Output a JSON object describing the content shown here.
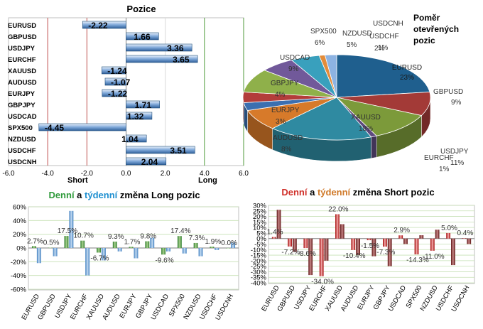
{
  "positions": {
    "title": "Pozice",
    "short_label": "Short",
    "long_label": "Long",
    "xlim": [
      -6,
      6
    ],
    "ticks": [
      "-6.0",
      "-4.0",
      "-2.0",
      "0.0",
      "2.0",
      "4.0",
      "6.0"
    ],
    "tick_values": [
      -6,
      -4,
      -2,
      0,
      2,
      4,
      6
    ],
    "categories": [
      "EURUSD",
      "GBPUSD",
      "USDJPY",
      "EURCHF",
      "XAUUSD",
      "AUDUSD",
      "EURJPY",
      "GBPJPY",
      "USDCAD",
      "SPX500",
      "NZDUSD",
      "USDCHF",
      "USDCNH"
    ],
    "values": [
      -2.22,
      1.66,
      3.36,
      3.65,
      -1.24,
      -1.07,
      -1.22,
      1.71,
      1.32,
      -4.45,
      1.04,
      3.51,
      2.04
    ],
    "value_labels": [
      "-2.22",
      "1.66",
      "3.36",
      "3.65",
      "-1.24",
      "-1.07",
      "-1.22",
      "1.71",
      "1.32",
      "-4.45",
      "1.04",
      "3.51",
      "2.04"
    ]
  },
  "pie": {
    "title_lines": [
      "Poměr",
      "otevřených",
      "pozic"
    ],
    "slices": [
      {
        "label": "EURUSD",
        "pct": "23%",
        "value": 23,
        "color": "#1f5f8e"
      },
      {
        "label": "GBPUSD",
        "pct": "9%",
        "value": 9,
        "color": "#a33a37"
      },
      {
        "label": "USDJPY",
        "pct": "11%",
        "value": 11,
        "color": "#7c9a3a"
      },
      {
        "label": "EURCHF",
        "pct": "1%",
        "value": 1,
        "color": "#5e4a7e"
      },
      {
        "label": "XAUUSD",
        "pct": "18%",
        "value": 18,
        "color": "#2f8aa1"
      },
      {
        "label": "AUDUSD",
        "pct": "8%",
        "value": 8,
        "color": "#d77a2a"
      },
      {
        "label": "EURJPY",
        "pct": "3%",
        "value": 3,
        "color": "#3b6fb0"
      },
      {
        "label": "GBPJPY",
        "pct": "4%",
        "value": 4,
        "color": "#b33d3a"
      },
      {
        "label": "USDCAD",
        "pct": "9%",
        "value": 9,
        "color": "#8fb04a"
      },
      {
        "label": "SPX500",
        "pct": "6%",
        "value": 6,
        "color": "#71599a"
      },
      {
        "label": "NZDUSD",
        "pct": "5%",
        "value": 5,
        "color": "#39a0bd"
      },
      {
        "label": "USDCHF",
        "pct": "1%",
        "value": 1,
        "color": "#e38c3a"
      },
      {
        "label": "USDCNH",
        "pct": "2%",
        "value": 2,
        "color": "#8db3e2"
      }
    ]
  },
  "long_chart": {
    "title_parts": [
      "Denní",
      " a ",
      "týdenní",
      " změna Long pozic"
    ],
    "title_colors": [
      "#2e9a3a",
      "#000000",
      "#1e8fd0",
      "#000000"
    ],
    "ylim": [
      -60,
      60
    ],
    "yticks": [
      "60%",
      "40%",
      "20%",
      "0%",
      "-20%",
      "-40%",
      "-60%"
    ],
    "ytick_values": [
      60,
      40,
      20,
      0,
      -20,
      -40,
      -60
    ],
    "categories": [
      "EURUSD",
      "GBPUSD",
      "USDJPY",
      "EURCHF",
      "XAUUSD",
      "AUDUSD",
      "EURJPY",
      "GBPJPY",
      "USDCAD",
      "SPX500",
      "NZDUSD",
      "USDCHF",
      "USDCNH"
    ],
    "series": [
      {
        "name": "Denní",
        "color": "#4a9a3a",
        "values": [
          2.7,
          0.5,
          17.5,
          10.7,
          -6.7,
          9.3,
          1.7,
          9.8,
          -9.6,
          17.4,
          7.3,
          1.9,
          0.0
        ]
      },
      {
        "name": "Týdenní",
        "color": "#5b9bd5",
        "values": [
          -22,
          -12,
          54,
          -40,
          -18,
          -5,
          -15,
          15,
          -5,
          -8,
          -12,
          -3,
          8
        ]
      }
    ],
    "labels": [
      {
        "text": "2.7%",
        "cat": 0,
        "val": 2.7
      },
      {
        "text": "0.5%",
        "cat": 1,
        "val": 0.5
      },
      {
        "text": "17.5%",
        "cat": 2,
        "val": 17.5
      },
      {
        "text": "10.7%",
        "cat": 3,
        "val": 10.7
      },
      {
        "text": "-6.7%",
        "cat": 4,
        "val": -6.7
      },
      {
        "text": "9.3%",
        "cat": 5,
        "val": 9.3
      },
      {
        "text": "1.7%",
        "cat": 6,
        "val": 1.7
      },
      {
        "text": "9.8%",
        "cat": 7,
        "val": 9.8
      },
      {
        "text": "-9.6%",
        "cat": 8,
        "val": -9.6
      },
      {
        "text": "17.4%",
        "cat": 9,
        "val": 17.4
      },
      {
        "text": "7.3%",
        "cat": 10,
        "val": 7.3
      },
      {
        "text": "1.9%",
        "cat": 11,
        "val": 1.9
      },
      {
        "text": "0.0%",
        "cat": 12,
        "val": 0.0
      }
    ]
  },
  "short_chart": {
    "title_parts": [
      "Denní",
      " a ",
      "týdenní",
      " změna Short pozic"
    ],
    "title_colors": [
      "#d0302a",
      "#000000",
      "#d07a2a",
      "#000000"
    ],
    "ylim": [
      -40,
      30
    ],
    "yticks": [
      "30%",
      "25%",
      "20%",
      "15%",
      "10%",
      "5%",
      "0%",
      "-5%",
      "-10%",
      "-15%",
      "-20%",
      "-25%",
      "-30%",
      "-35%",
      "-40%"
    ],
    "ytick_values": [
      30,
      25,
      20,
      15,
      10,
      5,
      0,
      -5,
      -10,
      -15,
      -20,
      -25,
      -30,
      -35,
      -40
    ],
    "categories": [
      "EURUSD",
      "GBPUSD",
      "USDJPY",
      "EURCHF",
      "XAUUSD",
      "AUDUSD",
      "EURJPY",
      "GBPJPY",
      "USDCAD",
      "SPX500",
      "NZDUSD",
      "USDCHF",
      "USDCNH"
    ],
    "series": [
      {
        "name": "Denní",
        "color": "#c00000",
        "values": [
          1.4,
          -7.2,
          -8.6,
          -34.0,
          22.0,
          -10.4,
          -1.5,
          -7.3,
          2.9,
          -14.3,
          -11.0,
          5.0,
          0.4
        ]
      },
      {
        "name": "Týdenní",
        "color": "#7b1e1e",
        "values": [
          26,
          -12,
          -33,
          -20,
          13,
          -15,
          -16,
          -25,
          -5,
          3,
          8,
          -24,
          -5
        ]
      }
    ],
    "labels": [
      {
        "text": "1.4%",
        "cat": 0,
        "val": 1.4
      },
      {
        "text": "-7.2%",
        "cat": 1,
        "val": -7.2
      },
      {
        "text": "-8.6%",
        "cat": 2,
        "val": -8.6
      },
      {
        "text": "-34.0%",
        "cat": 3,
        "val": -34.0
      },
      {
        "text": "22.0%",
        "cat": 4,
        "val": 22.0
      },
      {
        "text": "-10.4%",
        "cat": 5,
        "val": -10.4
      },
      {
        "text": "-1.5%",
        "cat": 6,
        "val": -1.5
      },
      {
        "text": "-7.3%",
        "cat": 7,
        "val": -7.3
      },
      {
        "text": "2.9%",
        "cat": 8,
        "val": 2.9
      },
      {
        "text": "-14.3%",
        "cat": 9,
        "val": -14.3
      },
      {
        "text": "-11.0%",
        "cat": 10,
        "val": -11.0
      },
      {
        "text": "5.0%",
        "cat": 11,
        "val": 5.0
      },
      {
        "text": "0.4%",
        "cat": 12,
        "val": 0.4
      }
    ]
  },
  "chart_data": [
    {
      "type": "bar",
      "title": "Pozice",
      "orientation": "horizontal",
      "categories": [
        "EURUSD",
        "GBPUSD",
        "USDJPY",
        "EURCHF",
        "XAUUSD",
        "AUDUSD",
        "EURJPY",
        "GBPJPY",
        "USDCAD",
        "SPX500",
        "NZDUSD",
        "USDCHF",
        "USDCNH"
      ],
      "values": [
        -2.22,
        1.66,
        3.36,
        3.65,
        -1.24,
        -1.07,
        -1.22,
        1.71,
        1.32,
        -4.45,
        1.04,
        3.51,
        2.04
      ],
      "xlim": [
        -6,
        6
      ]
    },
    {
      "type": "pie",
      "title": "Poměr otevřených pozic",
      "categories": [
        "EURUSD",
        "GBPUSD",
        "USDJPY",
        "EURCHF",
        "XAUUSD",
        "AUDUSD",
        "EURJPY",
        "GBPJPY",
        "USDCAD",
        "SPX500",
        "NZDUSD",
        "USDCHF",
        "USDCNH"
      ],
      "values": [
        23,
        9,
        11,
        1,
        18,
        8,
        3,
        4,
        9,
        6,
        5,
        1,
        2
      ]
    },
    {
      "type": "bar",
      "title": "Denní a týdenní změna Long pozic",
      "categories": [
        "EURUSD",
        "GBPUSD",
        "USDJPY",
        "EURCHF",
        "XAUUSD",
        "AUDUSD",
        "EURJPY",
        "GBPJPY",
        "USDCAD",
        "SPX500",
        "NZDUSD",
        "USDCHF",
        "USDCNH"
      ],
      "series": [
        {
          "values": [
            2.7,
            0.5,
            17.5,
            10.7,
            -6.7,
            9.3,
            1.7,
            9.8,
            -9.6,
            17.4,
            7.3,
            1.9,
            0.0
          ]
        },
        {
          "values": [
            -22,
            -12,
            54,
            -40,
            -18,
            -5,
            -15,
            15,
            -5,
            -8,
            -12,
            -3,
            8
          ]
        }
      ],
      "ylim": [
        -60,
        60
      ]
    },
    {
      "type": "bar",
      "title": "Denní a týdenní změna Short pozic",
      "categories": [
        "EURUSD",
        "GBPUSD",
        "USDJPY",
        "EURCHF",
        "XAUUSD",
        "AUDUSD",
        "EURJPY",
        "GBPJPY",
        "USDCAD",
        "SPX500",
        "NZDUSD",
        "USDCHF",
        "USDCNH"
      ],
      "series": [
        {
          "values": [
            1.4,
            -7.2,
            -8.6,
            -34.0,
            22.0,
            -10.4,
            -1.5,
            -7.3,
            2.9,
            -14.3,
            -11.0,
            5.0,
            0.4
          ]
        },
        {
          "values": [
            26,
            -12,
            -33,
            -20,
            13,
            -15,
            -16,
            -25,
            -5,
            3,
            8,
            -24,
            -5
          ]
        }
      ],
      "ylim": [
        -40,
        30
      ]
    }
  ]
}
